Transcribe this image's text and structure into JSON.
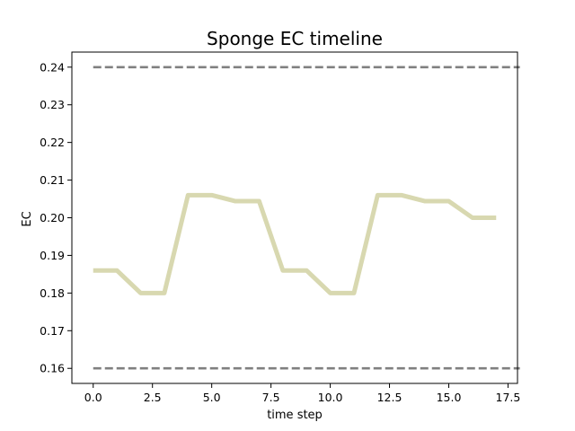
{
  "chart_data": {
    "type": "line",
    "title": "Sponge EC timeline",
    "xlabel": "time step",
    "ylabel": "EC",
    "xlim": [
      -0.9,
      17.9
    ],
    "ylim": [
      0.156,
      0.244
    ],
    "x_ticks": [
      0.0,
      2.5,
      5.0,
      7.5,
      10.0,
      12.5,
      15.0,
      17.5
    ],
    "x_tick_labels": [
      "0.0",
      "2.5",
      "5.0",
      "7.5",
      "10.0",
      "12.5",
      "15.0",
      "17.5"
    ],
    "y_ticks": [
      0.16,
      0.17,
      0.18,
      0.19,
      0.2,
      0.21,
      0.22,
      0.23,
      0.24
    ],
    "y_tick_labels": [
      "0.16",
      "0.17",
      "0.18",
      "0.19",
      "0.20",
      "0.21",
      "0.22",
      "0.23",
      "0.24"
    ],
    "grid": false,
    "legend": "none",
    "series": [
      {
        "color": "#d8d8b0",
        "style": "solid",
        "x": [
          0,
          1,
          2,
          3,
          4,
          5,
          6,
          7,
          8,
          9,
          10,
          11,
          12,
          13,
          14,
          15,
          16,
          17
        ],
        "y": [
          0.186,
          0.186,
          0.18,
          0.18,
          0.206,
          0.206,
          0.2044,
          0.2044,
          0.186,
          0.186,
          0.18,
          0.18,
          0.206,
          0.206,
          0.2044,
          0.2044,
          0.2,
          0.2
        ]
      }
    ],
    "reference_lines": [
      {
        "y": 0.24,
        "x_range": [
          0,
          18
        ],
        "color": "#808080",
        "style": "dashed"
      },
      {
        "y": 0.16,
        "x_range": [
          0,
          18
        ],
        "color": "#808080",
        "style": "dashed"
      }
    ]
  }
}
